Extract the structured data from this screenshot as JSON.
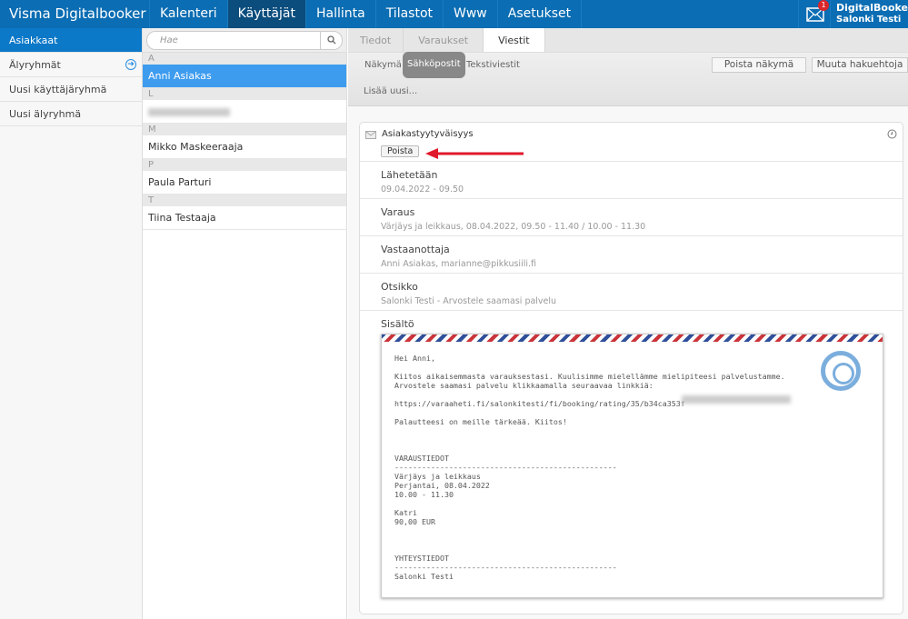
{
  "header": {
    "brand": "Visma Digitalbooker",
    "nav": [
      "Kalenteri",
      "Käyttäjät",
      "Hallinta",
      "Tilastot",
      "Www",
      "Asetukset"
    ],
    "active_nav": "Käyttäjät",
    "notifications": "1",
    "user_name": "DigitalBooker",
    "user_org": "Salonki Testi"
  },
  "sidebar": {
    "items": [
      "Asiakkaat",
      "Älyryhmät",
      "Uusi käyttäjäryhmä",
      "Uusi älyryhmä"
    ],
    "active": "Asiakkaat"
  },
  "customers": {
    "search_placeholder": "Hae",
    "groups": [
      {
        "letter": "A",
        "names": [
          "Anni Asiakas"
        ]
      },
      {
        "letter": "L",
        "names": [
          ""
        ]
      },
      {
        "letter": "M",
        "names": [
          "Mikko Maskeeraaja"
        ]
      },
      {
        "letter": "P",
        "names": [
          "Paula Parturi"
        ]
      },
      {
        "letter": "T",
        "names": [
          "Tiina Testaaja"
        ]
      }
    ],
    "selected": "Anni Asiakas"
  },
  "main": {
    "tabs": [
      "Tiedot",
      "Varaukset",
      "Viestit"
    ],
    "active_tab": "Viestit",
    "subtabs": [
      "Näkymä",
      "Sähköpostit",
      "Tekstiviestit"
    ],
    "active_subtab": "Sähköpostit",
    "add_new": "Lisää uusi...",
    "delete_view": "Poista näkymä",
    "change_filters": "Muuta hakuehtoja"
  },
  "message": {
    "title": "Asiakastyytyväisyys",
    "delete": "Poista",
    "fields": [
      {
        "label": "Lähetetään",
        "value": "09.04.2022 - 09.50"
      },
      {
        "label": "Varaus",
        "value": "Värjäys ja leikkaus, 08.04.2022, 09.50 - 11.40 / 10.00 - 11.30"
      },
      {
        "label": "Vastaanottaja",
        "value": "Anni Asiakas, marianne@pikkusiili.fi"
      },
      {
        "label": "Otsikko",
        "value": "Salonki Testi - Arvostele saamasi palvelu"
      }
    ],
    "content_label": "Sisältö",
    "body": "Hei Anni,\n\nKiitos aikaisemmasta varauksestasi. Kuulisimme mielellämme mielipiteesi palvelustamme.\nArvostele saamasi palvelu klikkaamalla seuraavaa linkkiä:\n\nhttps://varaaheti.fi/salonkitesti/fi/booking/rating/35/b34ca353f\n\nPalautteesi on meille tärkeää. Kiitos!\n\n\n\nVARAUSTIEDOT\n-------------------------------------------------\nVärjäys ja leikkaus\nPerjantai, 08.04.2022\n10.00 - 11.30\n\nKatri\n90,00 EUR\n\n\n\nYHTEYSTIEDOT\n-------------------------------------------------\nSalonki Testi\n\n\nPowered by DigitalBooker.com"
  },
  "colors": {
    "topbar": "#0b6db3",
    "active_nav": "#0b4d7d",
    "selected": "#3e9cef",
    "arrow": "#e0192b"
  }
}
